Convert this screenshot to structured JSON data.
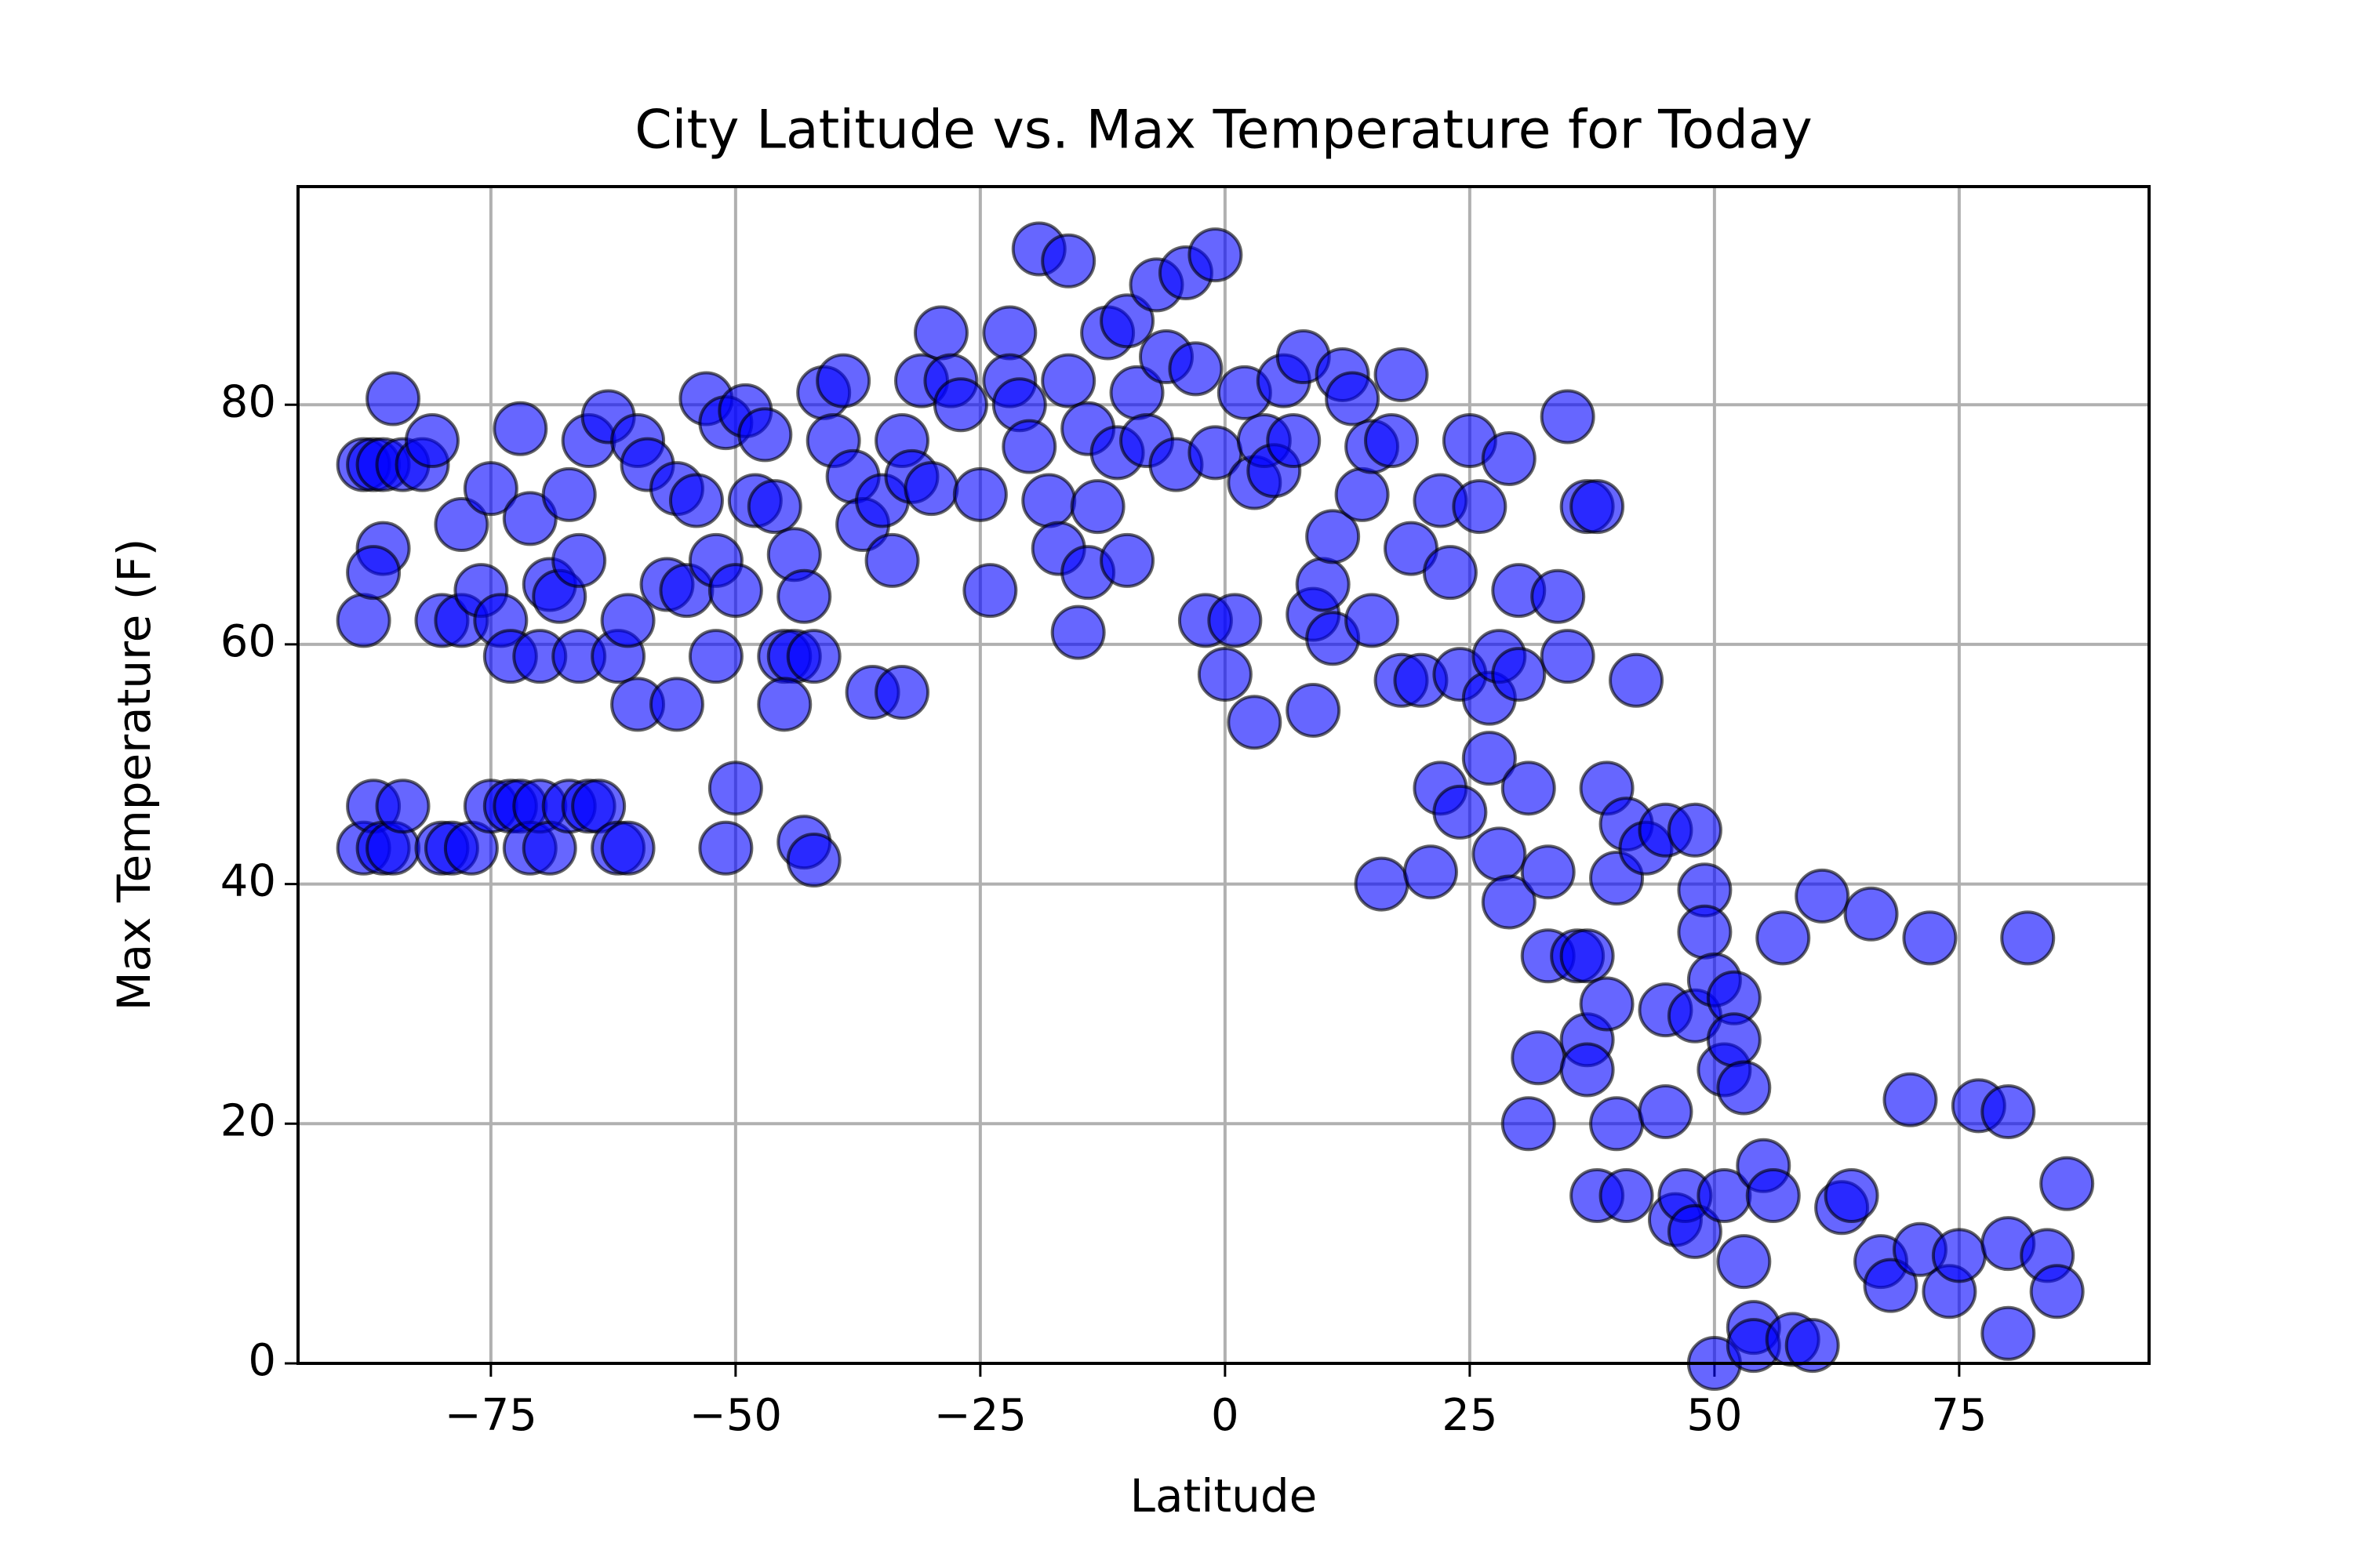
{
  "chart_data": {
    "type": "scatter",
    "title": "City Latitude vs. Max Temperature for Today",
    "xlabel": "Latitude",
    "ylabel": "Max Temperature (F)",
    "color": "blue",
    "alpha": 0.6,
    "edgecolor": "black",
    "grid": true,
    "xlim": [
      -94.7,
      94.4
    ],
    "ylim": [
      0,
      98.2
    ],
    "xticks": [
      {
        "value": -75,
        "label": "−75"
      },
      {
        "value": -50,
        "label": "−50"
      },
      {
        "value": -25,
        "label": "−25"
      },
      0,
      25,
      50,
      75
    ],
    "yticks": [
      0,
      20,
      40,
      60,
      80
    ],
    "x": [
      -88,
      -87,
      -86,
      -84,
      -82,
      -88,
      -86,
      -87,
      -85,
      -81,
      -88,
      -87,
      -86,
      -85,
      -84,
      -80,
      -79,
      -77,
      -80,
      -78,
      -78,
      -75,
      -76,
      -75,
      -73,
      -72,
      -71,
      -70,
      -69,
      -67,
      -65,
      -64,
      -62,
      -61,
      -74,
      -73,
      -72,
      -71,
      -70,
      -69,
      -68,
      -67,
      -66,
      -66,
      -65,
      -63,
      -62,
      -61,
      -60,
      -60,
      -59,
      -57,
      -56,
      -56,
      -55,
      -54,
      -53,
      -52,
      -52,
      -51,
      -51,
      -50,
      -49,
      -50,
      -48,
      -47,
      -46,
      -45,
      -44,
      -45,
      -44,
      -43,
      -43,
      -42,
      -42,
      -41,
      -40,
      -39,
      -38,
      -37,
      -36,
      -35,
      -34,
      -33,
      -33,
      -32,
      -31,
      -30,
      -29,
      -28,
      -27,
      -25,
      -24,
      -22,
      -22,
      -21,
      -20,
      -19,
      -18,
      -17,
      -16,
      -16,
      -15,
      -14,
      -14,
      -13,
      -12,
      -11,
      -10,
      -10,
      -9,
      -8,
      -7,
      -6,
      -5,
      -4,
      -3,
      -2,
      -1,
      -1,
      0,
      1,
      2,
      3,
      3,
      4,
      5,
      6,
      7,
      8,
      9,
      9,
      10,
      11,
      11,
      12,
      13,
      14,
      15,
      15,
      16,
      17,
      18,
      18,
      19,
      20,
      21,
      22,
      22,
      23,
      24,
      24,
      25,
      26,
      27,
      27,
      28,
      28,
      29,
      29,
      30,
      30,
      31,
      31,
      32,
      33,
      33,
      34,
      35,
      35,
      36,
      37,
      37,
      37,
      37,
      38,
      38,
      39,
      39,
      40,
      40,
      41,
      41,
      42,
      43,
      45,
      45,
      45,
      46,
      47,
      48,
      48,
      48,
      49,
      49,
      50,
      50,
      51,
      51,
      52,
      52,
      53,
      53,
      54,
      54,
      55,
      56,
      57,
      58,
      60,
      61,
      63,
      64,
      66,
      67,
      68,
      70,
      71,
      72,
      74,
      75,
      77,
      80,
      80,
      80,
      82,
      84,
      85,
      86
    ],
    "y": [
      75,
      75,
      75,
      75,
      75,
      62,
      68,
      66,
      80.5,
      77,
      43,
      46.5,
      43,
      43,
      46.5,
      43,
      43,
      43,
      62,
      62,
      70,
      73,
      64.5,
      46.5,
      46.5,
      46.5,
      43,
      46.5,
      43,
      46.5,
      46.5,
      46.5,
      43,
      43,
      62,
      59,
      78,
      70.5,
      59,
      65,
      64,
      72.5,
      67,
      59,
      77,
      79,
      59,
      62,
      55,
      77,
      75,
      65,
      55,
      73,
      64.5,
      72,
      80.5,
      67,
      59,
      78.5,
      43,
      48,
      79.5,
      64.5,
      72,
      77.5,
      71.5,
      59,
      59,
      55,
      67.5,
      64,
      43.5,
      42,
      59,
      81,
      77,
      82,
      74,
      70,
      56,
      72,
      67,
      56,
      77,
      74,
      82,
      73,
      86,
      82,
      80,
      72.5,
      64.5,
      86,
      82,
      80,
      76.5,
      93,
      72,
      68,
      92,
      82,
      61,
      66,
      78,
      71.5,
      86,
      76,
      87,
      67,
      81,
      77,
      90,
      84,
      75,
      91,
      83,
      62,
      92.5,
      76,
      57.5,
      62,
      81,
      73.5,
      53.5,
      77,
      74.5,
      82,
      77,
      84,
      62.5,
      54.5,
      65,
      69,
      60.5,
      82.5,
      80.5,
      72.5,
      62,
      76.5,
      40,
      77,
      57,
      82.5,
      68,
      57,
      41,
      48,
      72,
      66,
      57.5,
      46,
      77,
      71.5,
      50.5,
      55.5,
      59,
      42.5,
      38.5,
      75.5,
      64.5,
      57.5,
      48,
      20,
      25.5,
      34,
      41,
      64,
      59,
      79,
      34,
      34,
      27,
      24.5,
      71.5,
      71.5,
      14,
      30,
      48,
      20,
      40.5,
      14,
      45,
      57,
      43,
      29.5,
      21,
      44.5,
      12,
      14,
      11,
      29,
      44.5,
      39.5,
      36,
      32,
      0,
      14,
      24.5,
      30.5,
      27,
      23,
      8.5,
      3,
      1.5,
      16.5,
      14,
      35.5,
      2,
      1.5,
      39,
      13,
      14,
      37.5,
      8.5,
      6.5,
      22,
      9.5,
      35.5,
      6,
      9,
      21.5,
      21,
      10,
      2.5,
      35.5,
      9,
      6,
      15
    ]
  }
}
